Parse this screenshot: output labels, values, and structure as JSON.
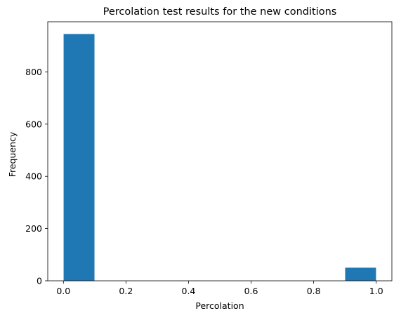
{
  "chart_data": {
    "type": "bar",
    "title": "Percolation test results for the new conditions",
    "xlabel": "Percolation",
    "ylabel": "Frequency",
    "xlim": [
      -0.05,
      1.05
    ],
    "ylim": [
      0,
      992
    ],
    "x_ticks": [
      "0.0",
      "0.2",
      "0.4",
      "0.6",
      "0.8",
      "1.0"
    ],
    "x_tick_values": [
      0.0,
      0.2,
      0.4,
      0.6,
      0.8,
      1.0
    ],
    "y_ticks": [
      "0",
      "200",
      "400",
      "600",
      "800"
    ],
    "y_tick_values": [
      0,
      200,
      400,
      600,
      800
    ],
    "bins": [
      {
        "start": 0.0,
        "end": 0.1,
        "value": 946
      },
      {
        "start": 0.1,
        "end": 0.2,
        "value": 0
      },
      {
        "start": 0.2,
        "end": 0.3,
        "value": 0
      },
      {
        "start": 0.3,
        "end": 0.4,
        "value": 0
      },
      {
        "start": 0.4,
        "end": 0.5,
        "value": 0
      },
      {
        "start": 0.5,
        "end": 0.6,
        "value": 0
      },
      {
        "start": 0.6,
        "end": 0.7,
        "value": 0
      },
      {
        "start": 0.7,
        "end": 0.8,
        "value": 0
      },
      {
        "start": 0.8,
        "end": 0.9,
        "value": 0
      },
      {
        "start": 0.9,
        "end": 1.0,
        "value": 51
      }
    ],
    "bar_color": "#1f77b4",
    "bar_edge_color": "#ffffff",
    "grid": false,
    "legend": "none"
  }
}
